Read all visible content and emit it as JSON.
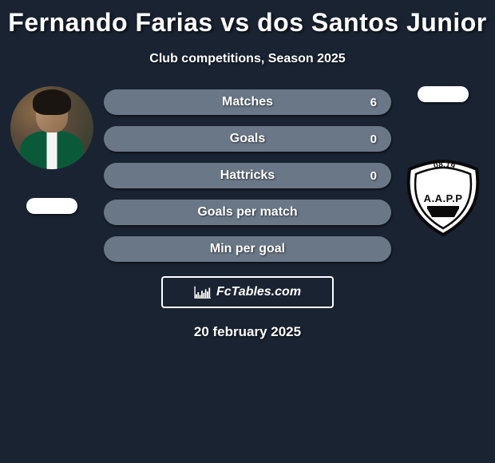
{
  "title": "Fernando Farias vs dos Santos Junior",
  "subtitle": "Club competitions, Season 2025",
  "date": "20 february 2025",
  "branding": "FcTables.com",
  "colors": {
    "background": "#1a2332",
    "bar": "#6a7787",
    "text": "#ffffff",
    "shadow": "rgba(0,0,0,0.6)"
  },
  "player_left": {
    "name": "Fernando Farias"
  },
  "player_right": {
    "name": "dos Santos Junior",
    "club_badge": {
      "text_top": "A.A.P.P",
      "text_arc": ".08.19"
    }
  },
  "stats": [
    {
      "label": "Matches",
      "value_right": "6"
    },
    {
      "label": "Goals",
      "value_right": "0"
    },
    {
      "label": "Hattricks",
      "value_right": "0"
    },
    {
      "label": "Goals per match",
      "value_right": ""
    },
    {
      "label": "Min per goal",
      "value_right": ""
    }
  ],
  "chart_icon_bars": [
    4,
    7,
    3,
    9,
    6,
    11,
    8,
    13
  ]
}
